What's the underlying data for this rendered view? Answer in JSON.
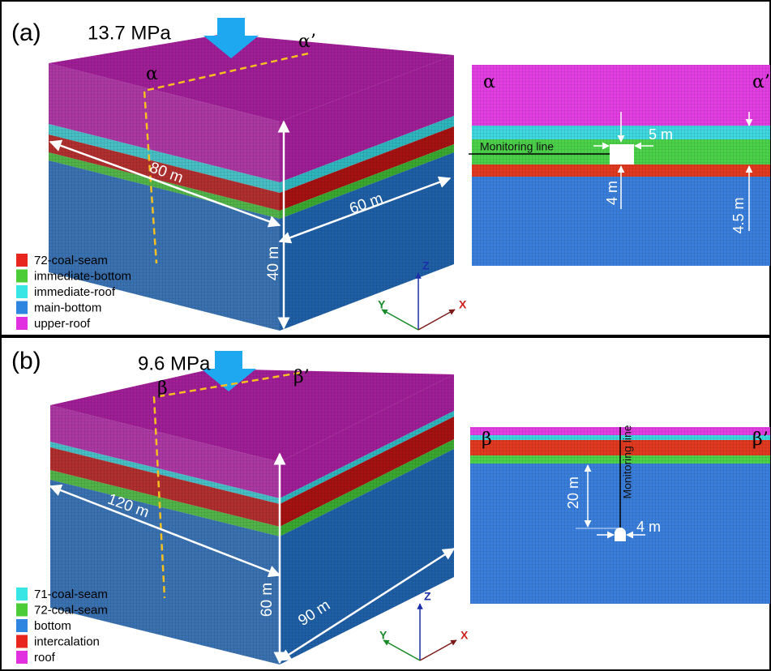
{
  "panels": [
    {
      "label": "(a)",
      "load": "13.7 MPa",
      "block_start": "α",
      "block_end": "α’",
      "dimensions": [
        "80 m",
        "60 m",
        "40 m"
      ],
      "legend": [
        "72-coal-seam",
        "immediate-bottom",
        "immediate-roof",
        "main-bottom",
        "upper-roof"
      ],
      "axes": [
        "Z",
        "Y",
        "X"
      ],
      "section": {
        "start": "α",
        "end": "α’",
        "monitoring": "Monitoring line",
        "dimensions": [
          "5 m",
          "4 m",
          "4.5 m"
        ]
      }
    },
    {
      "label": "(b)",
      "load": "9.6 MPa",
      "block_start": "β",
      "block_end": "β’",
      "dimensions": [
        "120 m",
        "90 m",
        "60 m"
      ],
      "legend": [
        "71-coal-seam",
        "72-coal-seam",
        "bottom",
        "intercalation",
        "roof"
      ],
      "axes": [
        "Z",
        "Y",
        "X"
      ],
      "section": {
        "start": "β",
        "end": "β’",
        "monitoring": "Monitoring line",
        "dimensions": [
          "20 m",
          "4 m"
        ]
      }
    }
  ]
}
